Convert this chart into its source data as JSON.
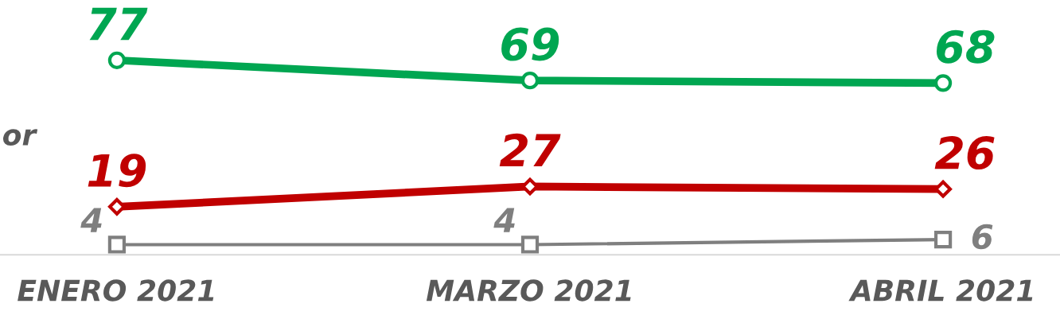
{
  "chart_data": {
    "type": "line",
    "categories": [
      "ENERO 2021",
      "MARZO 2021",
      "ABRIL 2021"
    ],
    "series": [
      {
        "color": "#00a651",
        "marker": "circle",
        "values": [
          77,
          69,
          68
        ]
      },
      {
        "color": "#c00000",
        "marker": "diamond",
        "values": [
          19,
          27,
          26
        ]
      },
      {
        "color": "#7f7f7f",
        "marker": "square",
        "values": [
          4,
          4,
          6
        ]
      }
    ],
    "data_labels": true,
    "grid": false,
    "legend": false,
    "annotations": [
      "or"
    ]
  }
}
